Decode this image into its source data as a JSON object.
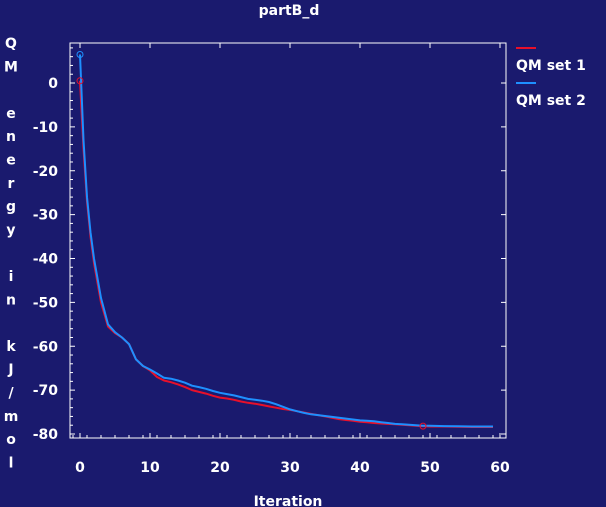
{
  "chart_data": {
    "type": "line",
    "title": "partB_d",
    "xlabel": "Iteration",
    "ylabel": "QM energy in kJ/mol",
    "xlim": [
      -1,
      60
    ],
    "ylim": [
      -81,
      8
    ],
    "xticks": [
      0,
      10,
      20,
      30,
      40,
      50,
      60
    ],
    "yticks": [
      0,
      -10,
      -20,
      -30,
      -40,
      -50,
      -60,
      -70,
      -80
    ],
    "grid": false,
    "legend_position": "outside-right",
    "series": [
      {
        "name": "QM set 1",
        "color": "#e8102a",
        "x": [
          0,
          0.5,
          1,
          1.5,
          2,
          3,
          4,
          5,
          6,
          7,
          8,
          9,
          10,
          11,
          12,
          13,
          14,
          15,
          16,
          17,
          18,
          19,
          20,
          21,
          22,
          23,
          24,
          25,
          26,
          27,
          28,
          29,
          30,
          31,
          32,
          33,
          34,
          35,
          36,
          37,
          38,
          39,
          40,
          41,
          42,
          43,
          44,
          45,
          46,
          47,
          48,
          49,
          50,
          52,
          54,
          56,
          58,
          59
        ],
        "y": [
          0.5,
          -15,
          -27,
          -35,
          -41,
          -50,
          -55.5,
          -57,
          -58,
          -59.5,
          -63,
          -64.5,
          -65.5,
          -67,
          -67.8,
          -68.2,
          -68.7,
          -69.3,
          -70,
          -70.4,
          -70.8,
          -71.3,
          -71.7,
          -71.9,
          -72.2,
          -72.6,
          -72.9,
          -73.1,
          -73.4,
          -73.7,
          -74.0,
          -74.3,
          -74.5,
          -74.8,
          -75.1,
          -75.4,
          -75.7,
          -76.0,
          -76.3,
          -76.6,
          -76.8,
          -77.0,
          -77.2,
          -77.3,
          -77.5,
          -77.6,
          -77.7,
          -77.8,
          -77.9,
          -78.0,
          -78.1,
          -78.2,
          -78.3,
          -78.3,
          -78.35,
          -78.4,
          -78.4,
          -78.4
        ]
      },
      {
        "name": "QM set 2",
        "color": "#1e90ff",
        "x": [
          0,
          0.5,
          1,
          1.5,
          2,
          3,
          4,
          5,
          6,
          7,
          8,
          9,
          10,
          11,
          12,
          13,
          14,
          15,
          16,
          17,
          18,
          19,
          20,
          21,
          22,
          23,
          24,
          25,
          26,
          27,
          28,
          29,
          30,
          31,
          32,
          33,
          34,
          35,
          36,
          37,
          38,
          39,
          40,
          41,
          42,
          43,
          44,
          45,
          46,
          47,
          48,
          49,
          50,
          52,
          54,
          56,
          58,
          59
        ],
        "y": [
          6.5,
          -13,
          -26,
          -34,
          -40,
          -49,
          -55,
          -56.8,
          -58,
          -59.5,
          -63,
          -64.5,
          -65.3,
          -66.2,
          -67.2,
          -67.4,
          -67.8,
          -68.3,
          -69,
          -69.3,
          -69.7,
          -70.2,
          -70.6,
          -70.9,
          -71.2,
          -71.6,
          -72.0,
          -72.2,
          -72.4,
          -72.7,
          -73.2,
          -73.8,
          -74.4,
          -74.8,
          -75.2,
          -75.5,
          -75.7,
          -75.9,
          -76.1,
          -76.3,
          -76.5,
          -76.7,
          -76.9,
          -77.0,
          -77.1,
          -77.3,
          -77.5,
          -77.7,
          -77.8,
          -77.9,
          -78.0,
          -78.1,
          -78.1,
          -78.2,
          -78.25,
          -78.3,
          -78.3,
          -78.3
        ]
      }
    ],
    "markers": [
      {
        "series": "QM set 1",
        "x": 0,
        "y": 0.5
      },
      {
        "series": "QM set 2",
        "x": 0,
        "y": 6.5
      },
      {
        "series": "QM set 1",
        "x": 49,
        "y": -78.2
      }
    ]
  }
}
